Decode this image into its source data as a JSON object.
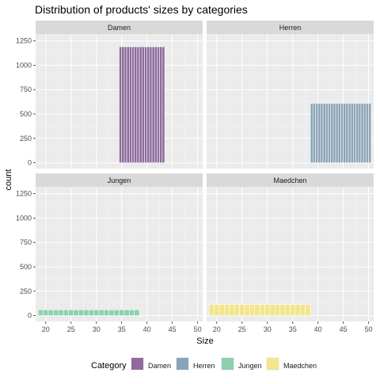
{
  "chart_data": {
    "type": "bar",
    "title": "Distribution of products' sizes by categories",
    "xlabel": "Size",
    "ylabel": "count",
    "xlim": [
      18,
      51
    ],
    "ylim": [
      -60,
      1320
    ],
    "x_ticks": [
      20,
      25,
      30,
      35,
      40,
      45,
      50
    ],
    "y_ticks": [
      0,
      250,
      500,
      750,
      1000,
      1250
    ],
    "x_tick_labels": [
      "20",
      "25",
      "30",
      "35",
      "40",
      "45",
      "50"
    ],
    "y_tick_labels": [
      "0",
      "250",
      "500",
      "750",
      "1000",
      "1250"
    ],
    "grid": true,
    "facets": [
      "Damen",
      "Herren",
      "Jungen",
      "Maedchen"
    ],
    "legend": {
      "title": "Category",
      "placement": "bottom",
      "entries": [
        "Damen",
        "Herren",
        "Jungen",
        "Maedchen"
      ]
    },
    "colors": {
      "Damen": "#8e6b9c",
      "Herren": "#8ba3b6",
      "Jungen": "#8bd1ae",
      "Maedchen": "#f2e58c"
    },
    "series": [
      {
        "facet": "Damen",
        "bin_start": 34.5,
        "bin_width": 0.5,
        "values": [
          1190,
          1190,
          1190,
          1190,
          1190,
          1190,
          1190,
          1190,
          1190,
          1190,
          1190,
          1190,
          1190,
          1190,
          1190,
          1190,
          1190,
          1190
        ]
      },
      {
        "facet": "Herren",
        "bin_start": 38.5,
        "bin_width": 0.5,
        "values": [
          610,
          610,
          610,
          610,
          610,
          610,
          610,
          610,
          610,
          610,
          610,
          610,
          610,
          610,
          610,
          610,
          610,
          610,
          610,
          610,
          610,
          610,
          610,
          610
        ]
      },
      {
        "facet": "Jungen",
        "bin_start": 18.5,
        "bin_width": 1,
        "values": [
          60,
          60,
          60,
          60,
          60,
          60,
          60,
          60,
          60,
          60,
          60,
          60,
          60,
          60,
          60,
          60,
          60,
          60,
          60,
          60
        ]
      },
      {
        "facet": "Maedchen",
        "bin_start": 18.5,
        "bin_width": 1,
        "values": [
          115,
          115,
          115,
          115,
          115,
          115,
          115,
          115,
          115,
          115,
          115,
          115,
          115,
          115,
          115,
          115,
          115,
          115,
          115,
          115
        ]
      }
    ]
  }
}
